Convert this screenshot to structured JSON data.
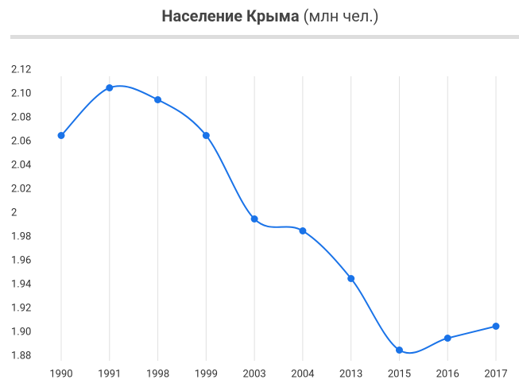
{
  "chart_data": {
    "type": "line",
    "title": "Население Крыма",
    "subtitle": "(млн чел.)",
    "categories": [
      "1990",
      "1991",
      "1998",
      "1999",
      "2003",
      "2004",
      "2013",
      "2015",
      "2016",
      "2017"
    ],
    "series": [
      {
        "name": "Население",
        "color": "#1a73e8",
        "values": [
          2.065,
          2.105,
          2.095,
          2.065,
          1.995,
          1.985,
          1.945,
          1.885,
          1.895,
          1.905
        ]
      }
    ],
    "ylim": [
      1.88,
      2.12
    ],
    "yticks": [
      1.88,
      {
        "value": 1.9,
        "label": "1.90"
      },
      1.92,
      1.94,
      1.96,
      1.98,
      2,
      2.02,
      2.04,
      2.06,
      2.08,
      {
        "value": 2.1,
        "label": "2.10"
      },
      2.12
    ],
    "grid": true,
    "smooth": true
  }
}
